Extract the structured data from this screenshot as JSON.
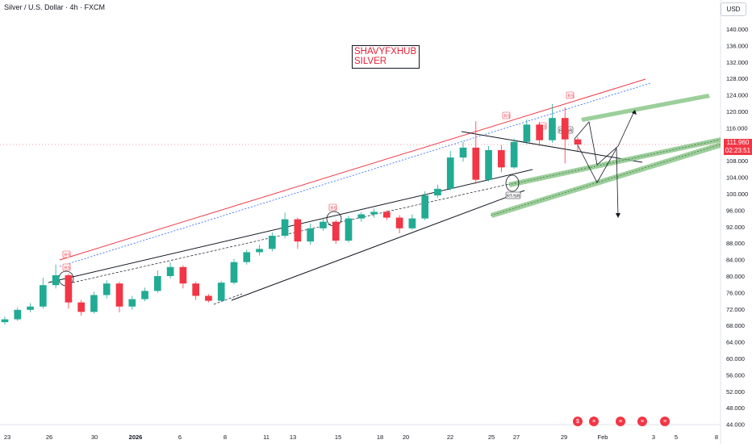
{
  "header": {
    "title": "Silver / U.S. Dollar · 4h · FXCM",
    "currency": "USD"
  },
  "watermark": {
    "line1": "SHAVYFXHUB",
    "line2": "SILVER"
  },
  "last_price": {
    "value": "111.960",
    "countdown": "02:23:51"
  },
  "events": [
    "dividend",
    "flag",
    "flag",
    "flag",
    "flag"
  ],
  "colors": {
    "up": "#22ab94",
    "down": "#f23645",
    "channel_top": "#f23645",
    "zone": "#8bc78a",
    "trend": "#131722"
  },
  "annotations": {
    "rs": "RS",
    "rt_sr": "RT/SR"
  },
  "chart_data": {
    "type": "candlestick",
    "title": "Silver / U.S. Dollar · 4h · FXCM",
    "ylim": [
      42,
      142
    ],
    "y_ticks": [
      "140.000",
      "136.000",
      "132.000",
      "128.000",
      "124.000",
      "120.000",
      "116.000",
      "112.000",
      "108.000",
      "104.000",
      "100.000",
      "96.000",
      "92.000",
      "88.000",
      "84.000",
      "80.000",
      "76.000",
      "72.000",
      "68.000",
      "64.000",
      "60.000",
      "56.000",
      "52.000",
      "48.000",
      "44.000"
    ],
    "x_ticks": [
      "23",
      "26",
      "30",
      "2026",
      "6",
      "8",
      "11",
      "13",
      "15",
      "18",
      "20",
      "22",
      "25",
      "27",
      "29",
      "Feb",
      "3",
      "5",
      "8"
    ],
    "series": [
      {
        "x": "Dec 23",
        "open": 68.8,
        "close": 69.5,
        "high": 70.2,
        "low": 68.2
      },
      {
        "x": "Dec 24",
        "open": 69.5,
        "close": 71.8,
        "high": 72.4,
        "low": 69.1
      },
      {
        "x": "Dec 25",
        "open": 71.8,
        "close": 72.6,
        "high": 73.4,
        "low": 71.2
      },
      {
        "x": "Dec 26",
        "open": 72.6,
        "close": 77.8,
        "high": 79.6,
        "low": 72.1
      },
      {
        "x": "Dec 26b",
        "open": 77.8,
        "close": 80.2,
        "high": 82.8,
        "low": 77.0
      },
      {
        "x": "Dec 29",
        "open": 80.2,
        "close": 73.6,
        "high": 80.6,
        "low": 72.1
      },
      {
        "x": "Dec 29b",
        "open": 73.6,
        "close": 71.3,
        "high": 74.2,
        "low": 70.4
      },
      {
        "x": "Dec 30",
        "open": 71.3,
        "close": 75.4,
        "high": 76.2,
        "low": 70.9
      },
      {
        "x": "Dec 31",
        "open": 75.4,
        "close": 78.2,
        "high": 79.0,
        "low": 74.6
      },
      {
        "x": "Jan 2",
        "open": 78.2,
        "close": 72.6,
        "high": 78.6,
        "low": 71.2
      },
      {
        "x": "Jan 2b",
        "open": 72.6,
        "close": 74.4,
        "high": 75.2,
        "low": 71.8
      },
      {
        "x": "Jan 5",
        "open": 74.4,
        "close": 76.4,
        "high": 77.2,
        "low": 73.9
      },
      {
        "x": "Jan 5b",
        "open": 76.4,
        "close": 80.0,
        "high": 81.4,
        "low": 76.0
      },
      {
        "x": "Jan 6",
        "open": 80.0,
        "close": 82.2,
        "high": 83.4,
        "low": 79.4
      },
      {
        "x": "Jan 7",
        "open": 82.2,
        "close": 78.2,
        "high": 82.6,
        "low": 77.0
      },
      {
        "x": "Jan 8",
        "open": 78.2,
        "close": 75.2,
        "high": 78.6,
        "low": 74.2
      },
      {
        "x": "Jan 8b",
        "open": 75.2,
        "close": 74.0,
        "high": 75.6,
        "low": 73.6
      },
      {
        "x": "Jan 9",
        "open": 74.0,
        "close": 78.4,
        "high": 78.8,
        "low": 73.8
      },
      {
        "x": "Jan 11",
        "open": 78.4,
        "close": 83.4,
        "high": 84.2,
        "low": 78.0
      },
      {
        "x": "Jan 12",
        "open": 83.4,
        "close": 85.8,
        "high": 86.4,
        "low": 82.8
      },
      {
        "x": "Jan 13",
        "open": 85.8,
        "close": 86.6,
        "high": 87.6,
        "low": 85.0
      },
      {
        "x": "Jan 13b",
        "open": 86.6,
        "close": 89.8,
        "high": 90.6,
        "low": 86.0
      },
      {
        "x": "Jan 14",
        "open": 89.8,
        "close": 93.8,
        "high": 95.4,
        "low": 89.2
      },
      {
        "x": "Jan 15",
        "open": 93.8,
        "close": 88.4,
        "high": 94.2,
        "low": 86.6
      },
      {
        "x": "Jan 15b",
        "open": 88.4,
        "close": 91.6,
        "high": 92.8,
        "low": 87.6
      },
      {
        "x": "Jan 16",
        "open": 91.6,
        "close": 93.2,
        "high": 94.2,
        "low": 91.0
      },
      {
        "x": "Jan 16b",
        "open": 93.2,
        "close": 88.6,
        "high": 93.6,
        "low": 87.8
      },
      {
        "x": "Jan 18",
        "open": 88.6,
        "close": 94.0,
        "high": 94.6,
        "low": 88.2
      },
      {
        "x": "Jan 19",
        "open": 94.0,
        "close": 95.0,
        "high": 95.6,
        "low": 93.2
      },
      {
        "x": "Jan 20",
        "open": 95.0,
        "close": 95.6,
        "high": 96.4,
        "low": 94.2
      },
      {
        "x": "Jan 21",
        "open": 95.6,
        "close": 94.2,
        "high": 96.0,
        "low": 93.6
      },
      {
        "x": "Jan 21b",
        "open": 94.2,
        "close": 91.6,
        "high": 94.8,
        "low": 90.4
      },
      {
        "x": "Jan 22",
        "open": 91.6,
        "close": 94.0,
        "high": 95.0,
        "low": 91.2
      },
      {
        "x": "Jan 22b",
        "open": 94.0,
        "close": 99.6,
        "high": 100.6,
        "low": 93.6
      },
      {
        "x": "Jan 23",
        "open": 99.6,
        "close": 101.2,
        "high": 102.2,
        "low": 99.0
      },
      {
        "x": "Jan 25",
        "open": 101.2,
        "close": 108.8,
        "high": 110.4,
        "low": 100.8
      },
      {
        "x": "Jan 25b",
        "open": 108.8,
        "close": 111.2,
        "high": 112.6,
        "low": 107.8
      },
      {
        "x": "Jan 26",
        "open": 111.2,
        "close": 103.4,
        "high": 117.6,
        "low": 102.4
      },
      {
        "x": "Jan 26b",
        "open": 103.4,
        "close": 110.6,
        "high": 111.6,
        "low": 103.0
      },
      {
        "x": "Jan 27",
        "open": 110.6,
        "close": 106.4,
        "high": 111.8,
        "low": 105.2
      },
      {
        "x": "Jan 27b",
        "open": 106.4,
        "close": 112.6,
        "high": 113.4,
        "low": 106.0
      },
      {
        "x": "Jan 28",
        "open": 112.6,
        "close": 116.8,
        "high": 118.0,
        "low": 112.0
      },
      {
        "x": "Jan 28b",
        "open": 116.8,
        "close": 113.0,
        "high": 117.4,
        "low": 111.6
      },
      {
        "x": "Jan 29",
        "open": 113.0,
        "close": 118.4,
        "high": 121.8,
        "low": 112.4
      },
      {
        "x": "Jan 29b",
        "open": 118.4,
        "close": 113.2,
        "high": 121.0,
        "low": 107.4
      },
      {
        "x": "Jan 30",
        "open": 113.2,
        "close": 111.96,
        "high": 113.8,
        "low": 110.4
      }
    ]
  }
}
